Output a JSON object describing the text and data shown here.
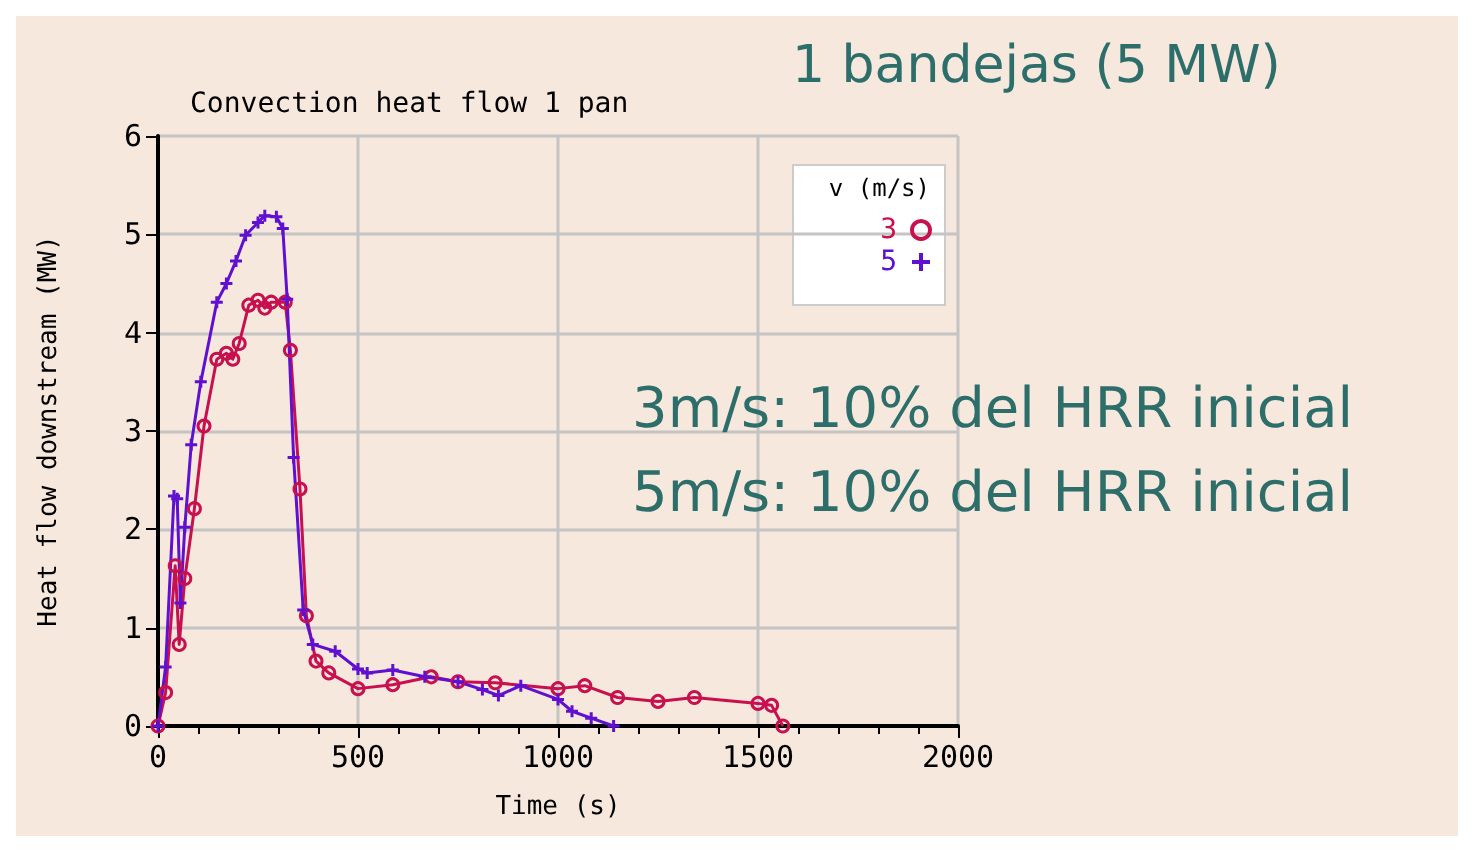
{
  "chart_data": {
    "type": "line",
    "title": "Convection heat flow 1 pan",
    "xlabel": "Time (s)",
    "ylabel": "Heat flow downstream (MW)",
    "legend_title": "v (m/s)",
    "annotations": [
      "1 bandejas (5 MW)",
      "3m/s: 10% del HRR inicial",
      "5m/s: 10% del HRR inicial"
    ],
    "xlim": [
      0,
      2000
    ],
    "xticks": [
      0,
      500,
      1000,
      1500,
      2000
    ],
    "ylim": [
      0,
      6
    ],
    "yticks": [
      0,
      1,
      2,
      3,
      4,
      5,
      6
    ],
    "grid": true,
    "legend": "top right",
    "line_style": "solid",
    "series": [
      {
        "name": "3",
        "color": "#c8104f",
        "marker": "circle",
        "x": [
          0,
          19,
          43,
          53,
          67,
          91,
          115,
          147,
          171,
          187,
          203,
          227,
          250,
          267,
          283,
          318,
          331,
          355,
          371,
          395,
          427,
          500,
          587,
          683,
          750,
          843,
          1000,
          1067,
          1149,
          1250,
          1341,
          1500,
          1534,
          1562
        ],
        "values": [
          0,
          0.34,
          1.63,
          0.83,
          1.5,
          2.21,
          3.05,
          3.73,
          3.79,
          3.73,
          3.89,
          4.28,
          4.33,
          4.25,
          4.31,
          4.31,
          3.82,
          2.41,
          1.12,
          0.66,
          0.54,
          0.38,
          0.42,
          0.5,
          0.45,
          0.44,
          0.38,
          0.41,
          0.29,
          0.25,
          0.29,
          0.23,
          0.21,
          0
        ]
      },
      {
        "name": "5",
        "color": "#6010d0",
        "marker": "cross",
        "x": [
          0,
          19,
          40,
          48,
          56,
          67,
          83,
          107,
          147,
          171,
          195,
          219,
          250,
          267,
          296,
          312,
          323,
          339,
          363,
          387,
          443,
          500,
          523,
          587,
          667,
          750,
          811,
          851,
          907,
          1000,
          1035,
          1083,
          1139
        ],
        "values": [
          0,
          0.6,
          2.34,
          2.31,
          1.25,
          2.02,
          2.86,
          3.5,
          4.31,
          4.5,
          4.73,
          4.99,
          5.12,
          5.19,
          5.18,
          5.06,
          4.34,
          2.73,
          1.18,
          0.83,
          0.76,
          0.58,
          0.54,
          0.57,
          0.5,
          0.45,
          0.37,
          0.31,
          0.41,
          0.27,
          0.15,
          0.08,
          0
        ]
      }
    ]
  }
}
